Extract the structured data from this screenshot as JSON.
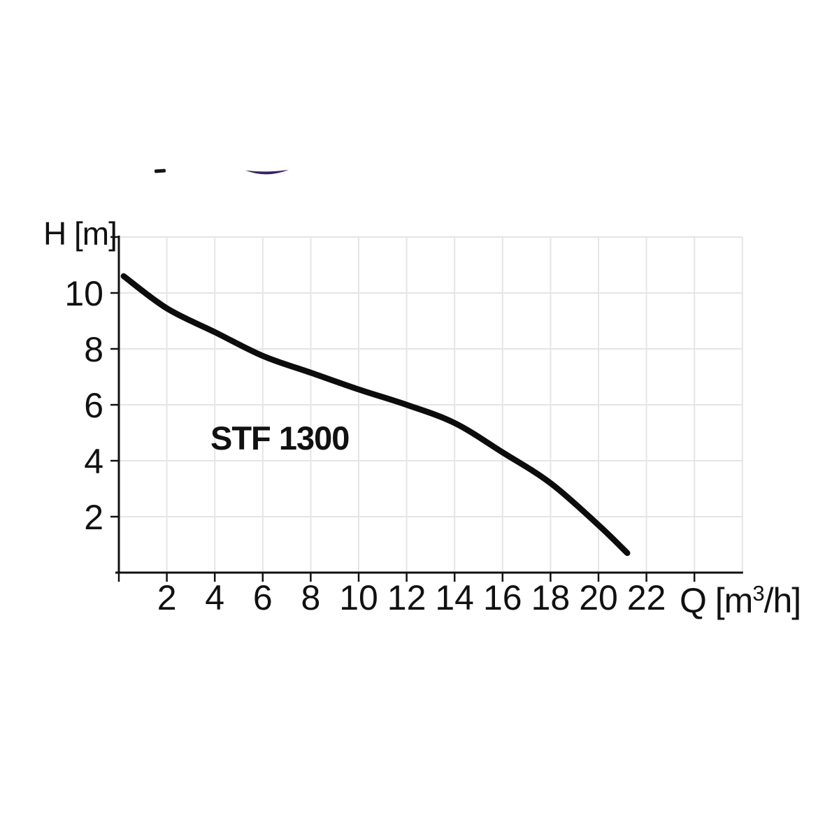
{
  "chart": {
    "y_axis_title": "H [m]",
    "x_axis_title_parts": {
      "pre": "Q [m",
      "sup": "3",
      "post": "/h]"
    },
    "series_label": "STF 1300"
  },
  "chart_data": {
    "type": "line",
    "title": "",
    "xlabel": "Q [m³/h]",
    "ylabel": "H [m]",
    "xlim": [
      0,
      26
    ],
    "ylim": [
      0,
      12
    ],
    "grid": true,
    "series": [
      {
        "name": "STF 1300",
        "points": [
          [
            0.2,
            10.6
          ],
          [
            2,
            9.45
          ],
          [
            4,
            8.6
          ],
          [
            6,
            7.75
          ],
          [
            8,
            7.15
          ],
          [
            10,
            6.55
          ],
          [
            12,
            6.0
          ],
          [
            14,
            5.35
          ],
          [
            16,
            4.3
          ],
          [
            18,
            3.2
          ],
          [
            20,
            1.7
          ],
          [
            21.2,
            0.7
          ]
        ]
      }
    ],
    "x_ticks": [
      0,
      2,
      4,
      6,
      8,
      10,
      12,
      14,
      16,
      18,
      20,
      22,
      24
    ],
    "x_labeled_ticks": [
      2,
      4,
      6,
      8,
      10,
      12,
      14,
      16,
      18,
      20,
      22
    ],
    "x_tick_labels": [
      "2",
      "4",
      "6",
      "8",
      "10",
      "12",
      "14",
      "16",
      "18",
      "20",
      "22"
    ],
    "y_ticks": [
      2,
      4,
      6,
      8,
      10,
      12
    ],
    "y_labeled_ticks": [
      2,
      4,
      6,
      8,
      10
    ],
    "y_tick_labels": [
      "2",
      "4",
      "6",
      "8",
      "10"
    ],
    "x_gridlines": [
      2,
      4,
      6,
      8,
      10,
      12,
      14,
      16,
      18,
      20,
      22,
      24,
      26
    ],
    "y_gridlines": [
      2,
      4,
      6,
      8,
      10,
      12
    ],
    "colors": {
      "curve": "#0c0c0c",
      "axis": "#111111",
      "grid": "#e5e5e5",
      "text": "#111111",
      "logo_mark": "#3b2362"
    }
  }
}
